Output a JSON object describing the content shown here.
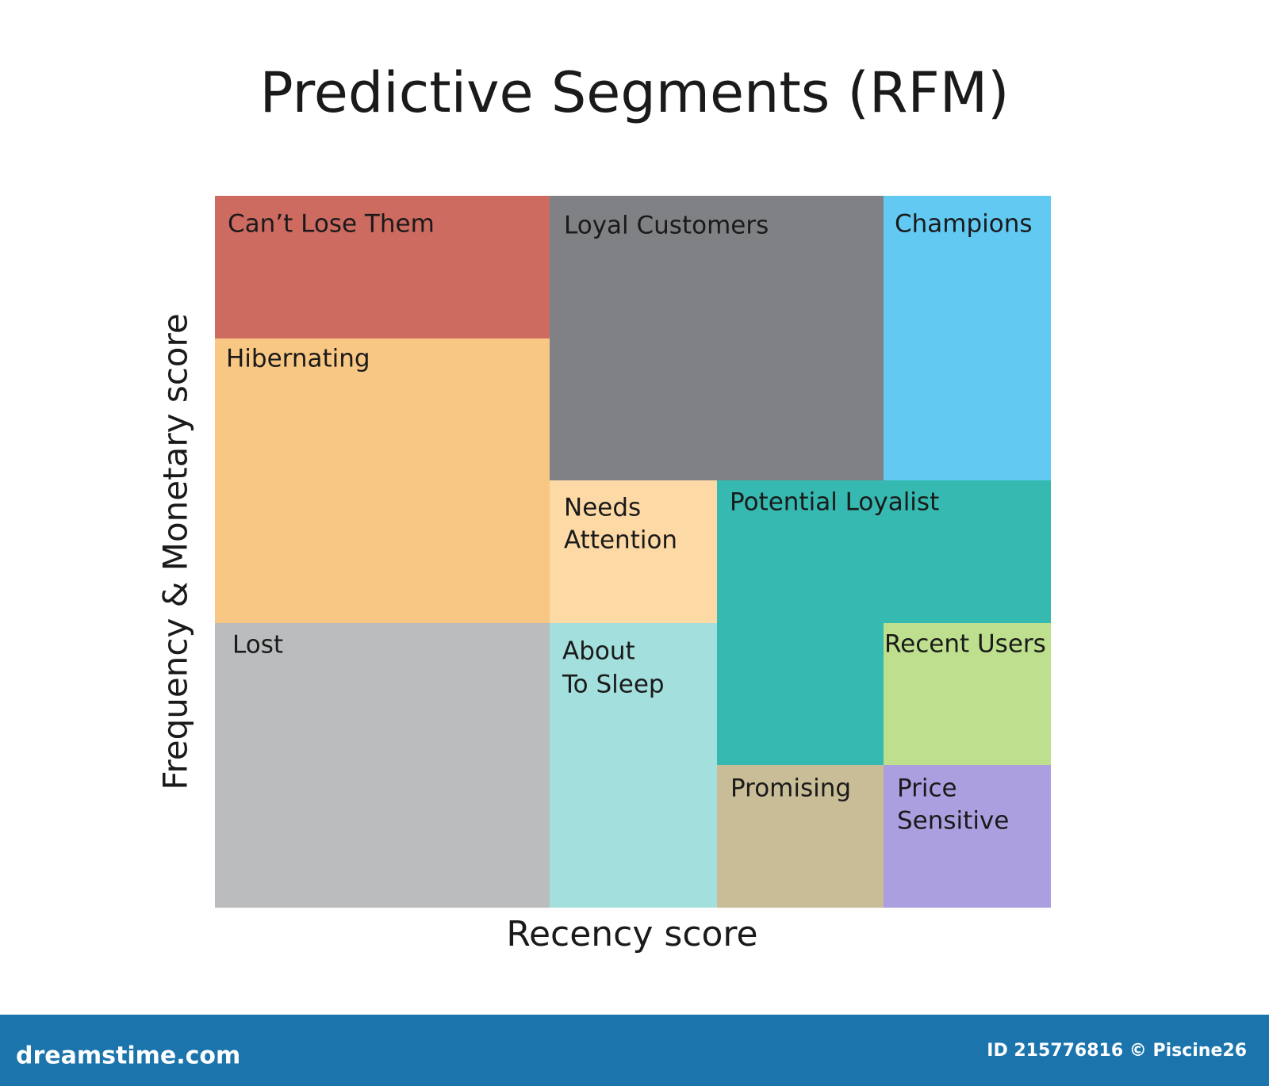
{
  "title": "Predictive Segments (RFM)",
  "x_axis_label": "Recency score",
  "y_axis_label": "Frequency & Monetary score",
  "segments": [
    {
      "label": [
        "Can’t Lose Them"
      ]
    },
    {
      "label": [
        "Hibernating"
      ]
    },
    {
      "label": [
        "Lost"
      ]
    },
    {
      "label": [
        "Loyal Customers"
      ]
    },
    {
      "label": [
        "Champions"
      ]
    },
    {
      "label": [
        "Needs",
        "Attention"
      ]
    },
    {
      "label": [
        "About",
        "To Sleep"
      ]
    },
    {
      "label": [
        "Potential Loyalist"
      ]
    },
    {
      "label": [
        "Recent Users"
      ]
    },
    {
      "label": [
        "Promising"
      ]
    },
    {
      "label": [
        "Price",
        "Sensitive"
      ]
    }
  ],
  "footer": {
    "brand": "dreamstime.com",
    "credit": "ID 215776816 © Piscine26"
  }
}
